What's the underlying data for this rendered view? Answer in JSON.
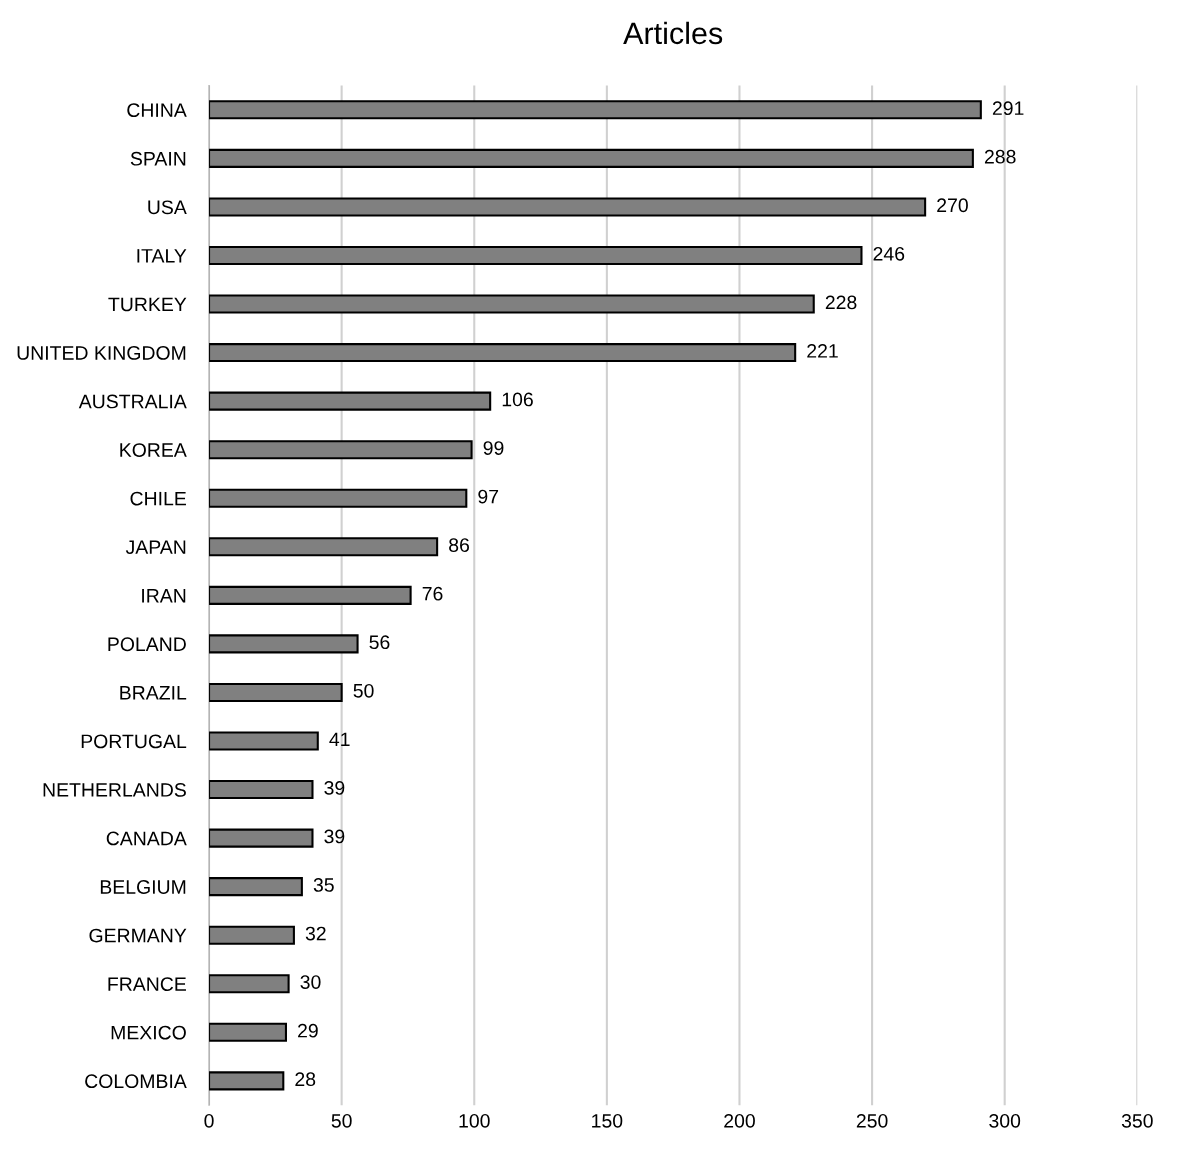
{
  "chart_data": {
    "type": "bar",
    "orientation": "horizontal",
    "title": "Articles",
    "categories": [
      "CHINA",
      "SPAIN",
      "USA",
      "ITALY",
      "TURKEY",
      "UNITED KINGDOM",
      "AUSTRALIA",
      "KOREA",
      "CHILE",
      "JAPAN",
      "IRAN",
      "POLAND",
      "BRAZIL",
      "PORTUGAL",
      "NETHERLANDS",
      "CANADA",
      "BELGIUM",
      "GERMANY",
      "FRANCE",
      "MEXICO",
      "COLOMBIA"
    ],
    "values": [
      291,
      288,
      270,
      246,
      228,
      221,
      106,
      99,
      97,
      86,
      76,
      56,
      50,
      41,
      39,
      39,
      35,
      32,
      30,
      29,
      28
    ],
    "color": "#808080",
    "data_labels": true,
    "xlim": [
      0,
      350
    ],
    "xticks": [
      0,
      50,
      100,
      150,
      200,
      250,
      300,
      350
    ],
    "grid": "x",
    "legend": false
  }
}
